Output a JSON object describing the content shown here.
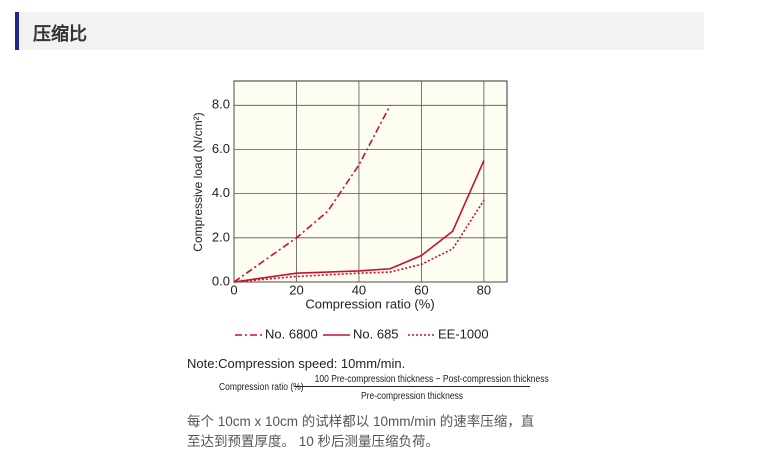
{
  "header": {
    "title": "压缩比"
  },
  "chart_data": {
    "type": "line",
    "x_label": "Compression ratio (%)",
    "y_label": "Compressive load (N/cm²)",
    "xlim": [
      0,
      87.4
    ],
    "ylim": [
      0,
      9.1
    ],
    "xticks": [
      0,
      20,
      40,
      60,
      80
    ],
    "yticks": [
      {
        "value": 0,
        "label": "0.0"
      },
      {
        "value": 2,
        "label": "2.0"
      },
      {
        "value": 4,
        "label": "4.0"
      },
      {
        "value": 6,
        "label": "6.0"
      },
      {
        "value": 8,
        "label": "8.0"
      }
    ],
    "grid": true,
    "series": [
      {
        "name": "No. 6800",
        "color": "#c8102e",
        "style": "dash-dot",
        "x": [
          0,
          20,
          30,
          40,
          50
        ],
        "values": [
          0,
          2.0,
          3.2,
          5.3,
          8.0
        ]
      },
      {
        "name": "No. 685",
        "color": "#c8102e",
        "style": "solid",
        "x": [
          0,
          20,
          40,
          50,
          60,
          70,
          80
        ],
        "values": [
          0,
          0.4,
          0.5,
          0.6,
          1.2,
          2.3,
          5.5
        ]
      },
      {
        "name": "EE-1000",
        "color": "#c8102e",
        "style": "dotted",
        "x": [
          0,
          20,
          40,
          50,
          60,
          70,
          80
        ],
        "values": [
          0,
          0.25,
          0.4,
          0.45,
          0.8,
          1.5,
          3.7
        ]
      }
    ]
  },
  "note": {
    "label": "Note:",
    "text": "Compression speed: 10mm/min.",
    "formula": {
      "lhs": "Compression ratio (%)",
      "numerator": "100 Pre-compression thickness − Post-compression thickness",
      "denominator": "Pre-compression thickness"
    }
  },
  "description": "每个 10cm x 10cm 的试样都以 10mm/min 的速率压缩，直至达到预置厚度。 10 秒后测量压缩负荷。"
}
